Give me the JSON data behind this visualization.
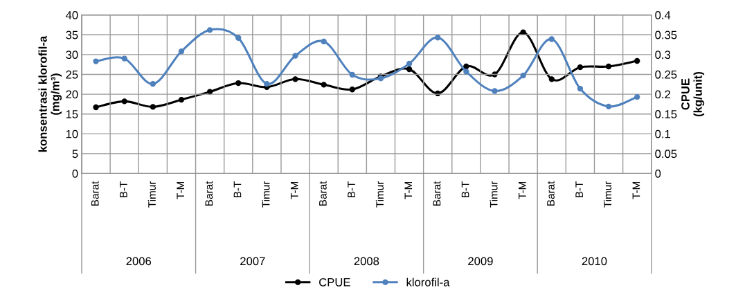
{
  "chart_data": {
    "type": "line",
    "ylabel": "konsentrasi klorofil-a\n(mg/m³)",
    "y2label": "CPUE\n(kg/unit)",
    "categories": [
      "Barat",
      "B-T",
      "Timur",
      "T-M",
      "Barat",
      "B-T",
      "Timur",
      "T-M",
      "Barat",
      "B-T",
      "Timur",
      "T-M",
      "Barat",
      "B-T",
      "Timur",
      "T-M",
      "Barat",
      "B-T",
      "Timur",
      "T-M"
    ],
    "annotations": [
      "2006",
      "2007",
      "2008",
      "2009",
      "2010"
    ],
    "series": [
      {
        "name": "CPUE",
        "color": "#000000",
        "axis": "y2",
        "values": [
          0.167,
          0.182,
          0.168,
          0.186,
          0.206,
          0.228,
          0.218,
          0.238,
          0.224,
          0.212,
          0.245,
          0.263,
          0.202,
          0.27,
          0.25,
          0.356,
          0.238,
          0.268,
          0.27,
          0.284
        ]
      },
      {
        "name": "klorofil-a",
        "color": "#4f81bd",
        "values": [
          28.3,
          29.0,
          22.6,
          30.8,
          36.2,
          34.2,
          22.6,
          29.7,
          33.3,
          24.9,
          24.0,
          27.7,
          34.3,
          25.7,
          20.8,
          24.7,
          33.9,
          21.4,
          16.9,
          19.3
        ]
      }
    ],
    "ylim": [
      0,
      40
    ],
    "yticks": [
      0,
      5,
      10,
      15,
      20,
      25,
      30,
      35,
      40
    ],
    "y2lim": [
      0,
      0.4
    ],
    "y2ticks": [
      0,
      0.05,
      0.1,
      0.15,
      0.2,
      0.25,
      0.3,
      0.35,
      0.4
    ],
    "grid": true,
    "legend": "bottom",
    "marker": "circle",
    "line_style": "solid"
  }
}
